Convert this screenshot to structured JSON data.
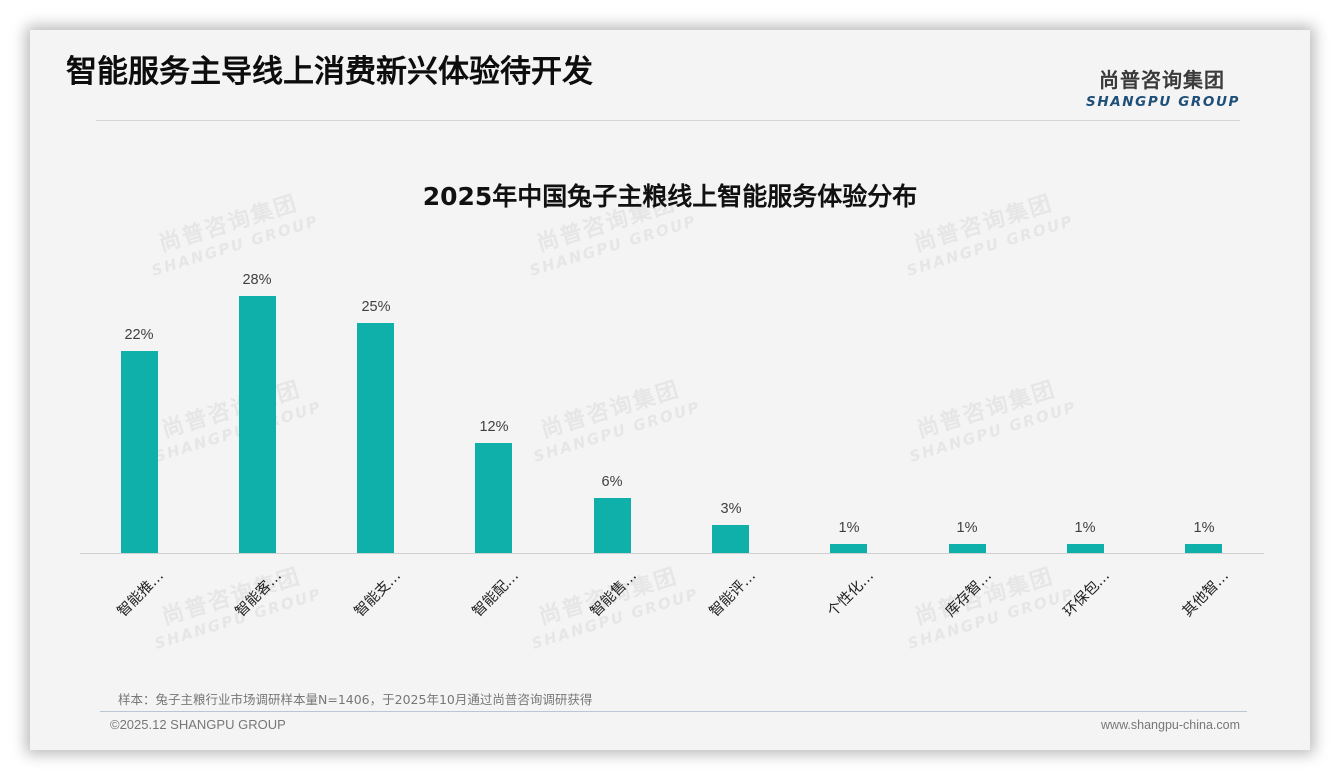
{
  "header": {
    "page_title": "智能服务主导线上消费新兴体验待开发",
    "logo_cn": "尚普咨询集团",
    "logo_en": "SHANGPU GROUP"
  },
  "watermark": {
    "cn": "尚普咨询集团",
    "en": "SHANGPU GROUP"
  },
  "chart_data": {
    "type": "bar",
    "title": "2025年中国兔子主粮线上智能服务体验分布",
    "categories": [
      "智能推…",
      "智能客…",
      "智能支…",
      "智能配…",
      "智能售…",
      "智能评…",
      "个性化…",
      "库存智…",
      "环保包…",
      "其他智…"
    ],
    "values": [
      22,
      28,
      25,
      12,
      6,
      3,
      1,
      1,
      1,
      1
    ],
    "value_labels": [
      "22%",
      "28%",
      "25%",
      "12%",
      "6%",
      "3%",
      "1%",
      "1%",
      "1%",
      "1%"
    ],
    "unit": "%",
    "xlabel": "",
    "ylabel": "",
    "ylim": [
      0,
      30
    ],
    "grid": false,
    "legend": "none",
    "bar_color": "#0fb0a9"
  },
  "footer": {
    "source_note": "样本：兔子主粮行业市场调研样本量N=1406，于2025年10月通过尚普咨询调研获得",
    "copyright": "©2025.12 SHANGPU GROUP",
    "website": "www.shangpu-china.com"
  }
}
